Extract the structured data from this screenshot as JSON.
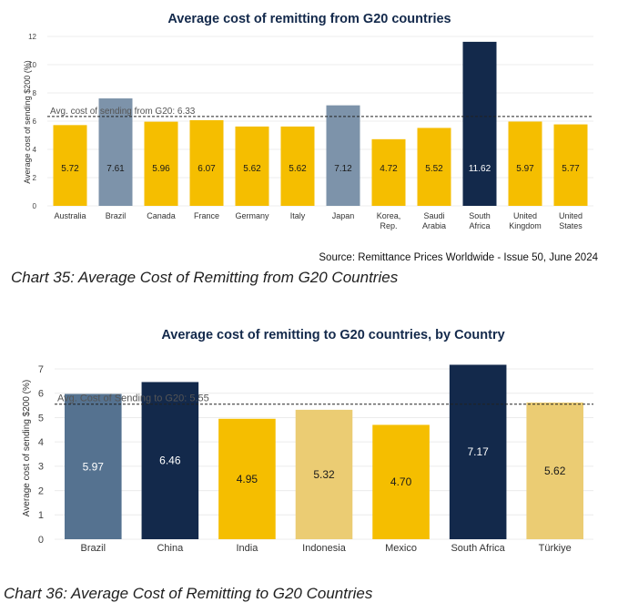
{
  "chart_data": [
    {
      "type": "bar",
      "title": "Average cost of remitting from G20 countries",
      "ylabel": "Average cost of sending $200 (%)",
      "xlabel": "",
      "ylim": [
        0,
        12
      ],
      "yticks": [
        0,
        2,
        4,
        6,
        8,
        10,
        12
      ],
      "grid": true,
      "categories": [
        [
          "Australia"
        ],
        [
          "Brazil"
        ],
        [
          "Canada"
        ],
        [
          "France"
        ],
        [
          "Germany"
        ],
        [
          "Italy"
        ],
        [
          "Japan"
        ],
        [
          "Korea,",
          "Rep."
        ],
        [
          "Saudi",
          "Arabia"
        ],
        [
          "South",
          "Africa"
        ],
        [
          "United",
          "Kingdom"
        ],
        [
          "United",
          "States"
        ]
      ],
      "values": [
        5.72,
        7.61,
        5.96,
        6.07,
        5.62,
        5.62,
        7.12,
        4.72,
        5.52,
        11.62,
        5.97,
        5.77
      ],
      "value_labels": [
        "5.72",
        "7.61",
        "5.96",
        "6.07",
        "5.62",
        "5.62",
        "7.12",
        "4.72",
        "5.52",
        "11.62",
        "5.97",
        "5.77"
      ],
      "bar_colors": [
        "#f5be00",
        "#7d93aa",
        "#f5be00",
        "#f5be00",
        "#f5be00",
        "#f5be00",
        "#7d93aa",
        "#f5be00",
        "#f5be00",
        "#13294b",
        "#f5be00",
        "#f5be00"
      ],
      "reference_line": {
        "value": 6.33,
        "label": "Avg. cost of sending from G20: 6.33"
      },
      "source": "Source: Remittance Prices Worldwide - Issue 50, June 2024"
    },
    {
      "type": "bar",
      "title": "Average cost of remitting to G20 countries, by Country",
      "ylabel": "Average cost of sending $200 (%)",
      "xlabel": "",
      "ylim": [
        0,
        7.3
      ],
      "yticks": [
        0,
        1,
        2,
        3,
        4,
        5,
        6,
        7
      ],
      "grid": true,
      "categories": [
        [
          "Brazil"
        ],
        [
          "China"
        ],
        [
          "India"
        ],
        [
          "Indonesia"
        ],
        [
          "Mexico"
        ],
        [
          "South Africa"
        ],
        [
          "Türkiye"
        ]
      ],
      "values": [
        5.97,
        6.46,
        4.95,
        5.32,
        4.7,
        7.17,
        5.62
      ],
      "value_labels": [
        "5.97",
        "6.46",
        "4.95",
        "5.32",
        "4.70",
        "7.17",
        "5.62"
      ],
      "bar_colors": [
        "#557290",
        "#13294b",
        "#f5be00",
        "#ebcc73",
        "#f5be00",
        "#13294b",
        "#ebcc73"
      ],
      "reference_line": {
        "value": 5.55,
        "label": "Avg. Cost of Sending to G20: 5.55"
      }
    }
  ],
  "captions": {
    "chart35": "Chart 35: Average Cost of Remitting from G20 Countries",
    "chart36": "Chart 36: Average Cost of Remitting to G20 Countries"
  }
}
